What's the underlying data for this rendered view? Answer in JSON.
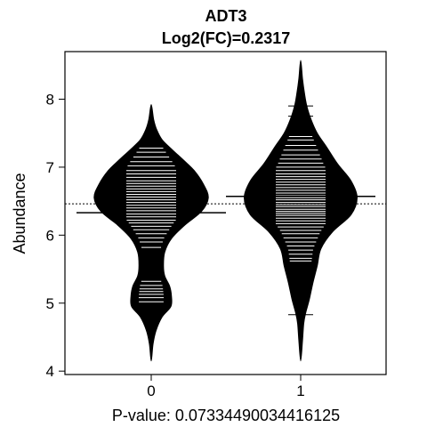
{
  "chart_data": {
    "type": "beanplot",
    "title": "ADT3",
    "subtitle": "Log2(FC)=0.2317",
    "ylabel": "Abundance",
    "xlabel": "P-value: 0.07334490034416125",
    "categories": [
      "0",
      "1"
    ],
    "ylim": [
      3.95,
      8.7
    ],
    "yticks": [
      4,
      5,
      6,
      7,
      8
    ],
    "overall_mean": 6.46,
    "groups": [
      {
        "category": "0",
        "mean": 6.33,
        "density_y": [
          4.15,
          4.4,
          4.6,
          4.8,
          4.95,
          5.1,
          5.25,
          5.4,
          5.55,
          5.75,
          5.95,
          6.15,
          6.35,
          6.55,
          6.75,
          6.95,
          7.1,
          7.25,
          7.4,
          7.55,
          7.7,
          7.92
        ],
        "density_w": [
          0.0,
          0.03,
          0.08,
          0.18,
          0.32,
          0.33,
          0.3,
          0.22,
          0.2,
          0.22,
          0.33,
          0.55,
          0.82,
          0.93,
          0.85,
          0.7,
          0.53,
          0.35,
          0.18,
          0.09,
          0.04,
          0.0
        ],
        "observations": [
          4.85,
          5.02,
          5.08,
          5.13,
          5.17,
          5.21,
          5.26,
          5.32,
          5.45,
          5.55,
          5.62,
          5.68,
          5.76,
          5.82,
          5.9,
          5.96,
          6.02,
          6.08,
          6.13,
          6.18,
          6.22,
          6.27,
          6.31,
          6.36,
          6.4,
          6.44,
          6.48,
          6.52,
          6.56,
          6.6,
          6.64,
          6.68,
          6.72,
          6.76,
          6.8,
          6.85,
          6.9,
          6.95,
          7.02,
          7.08,
          7.15,
          7.22,
          7.28
        ]
      },
      {
        "category": "1",
        "mean": 6.57,
        "density_y": [
          4.15,
          4.45,
          4.7,
          4.85,
          5.05,
          5.3,
          5.55,
          5.8,
          6.05,
          6.3,
          6.55,
          6.8,
          7.05,
          7.3,
          7.5,
          7.7,
          7.9,
          8.1,
          8.3,
          8.57
        ],
        "density_w": [
          0.0,
          0.03,
          0.05,
          0.08,
          0.14,
          0.2,
          0.27,
          0.33,
          0.52,
          0.82,
          0.92,
          0.82,
          0.6,
          0.42,
          0.27,
          0.17,
          0.1,
          0.06,
          0.03,
          0.0
        ],
        "observations": [
          4.83,
          5.62,
          5.66,
          5.72,
          5.78,
          5.84,
          5.9,
          5.96,
          6.02,
          6.07,
          6.12,
          6.17,
          6.21,
          6.25,
          6.29,
          6.32,
          6.35,
          6.38,
          6.42,
          6.45,
          6.48,
          6.52,
          6.55,
          6.58,
          6.62,
          6.66,
          6.7,
          6.74,
          6.78,
          6.82,
          6.86,
          6.9,
          6.95,
          7.0,
          7.06,
          7.12,
          7.18,
          7.25,
          7.32,
          7.4,
          7.45,
          7.75,
          7.9
        ]
      }
    ],
    "colors": {
      "bean": "#000000",
      "line": "#ffffff",
      "mean_line": "#000000"
    }
  }
}
